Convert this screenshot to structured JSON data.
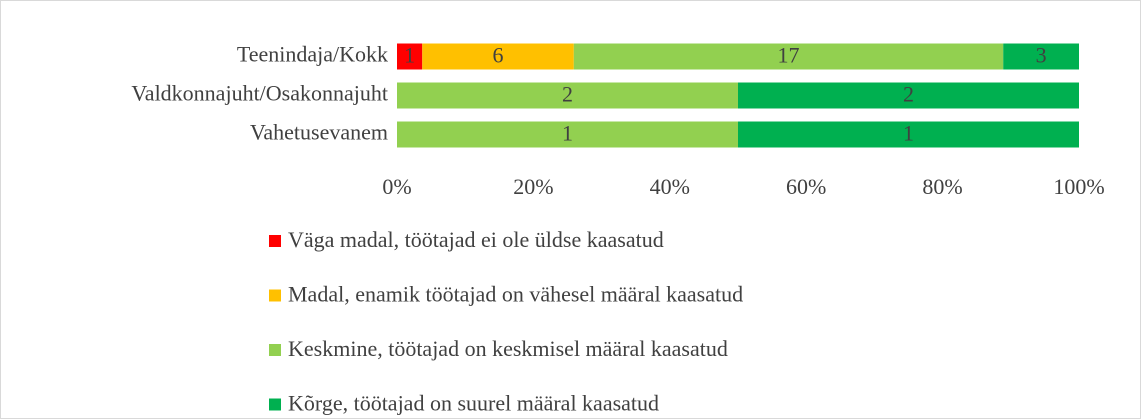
{
  "chart_data": {
    "type": "bar",
    "orientation": "horizontal",
    "stacking": "percent",
    "categories": [
      "Teenindaja/Kokk",
      "Valdkonnajuht/Osakonnajuht",
      "Vahetusevanem"
    ],
    "series": [
      {
        "name": "Väga madal, töötajad ei ole üldse kaasatud",
        "color": "#ff0000",
        "values": [
          1,
          0,
          0
        ]
      },
      {
        "name": "Madal, enamik töötajad on vähesel määral kaasatud",
        "color": "#ffc000",
        "values": [
          6,
          0,
          0
        ]
      },
      {
        "name": "Keskmine, töötajad on keskmisel määral kaasatud",
        "color": "#92d050",
        "values": [
          17,
          2,
          1
        ]
      },
      {
        "name": "Kõrge, töötajad on suurel määral kaasatud",
        "color": "#00b050",
        "values": [
          3,
          2,
          1
        ]
      }
    ],
    "xlim": [
      0,
      100
    ],
    "xticks": [
      {
        "value": 0,
        "label": "0%"
      },
      {
        "value": 20,
        "label": "20%"
      },
      {
        "value": 40,
        "label": "40%"
      },
      {
        "value": 60,
        "label": "60%"
      },
      {
        "value": 80,
        "label": "80%"
      },
      {
        "value": 100,
        "label": "100%"
      }
    ],
    "grid": false,
    "legend": "bottom"
  }
}
